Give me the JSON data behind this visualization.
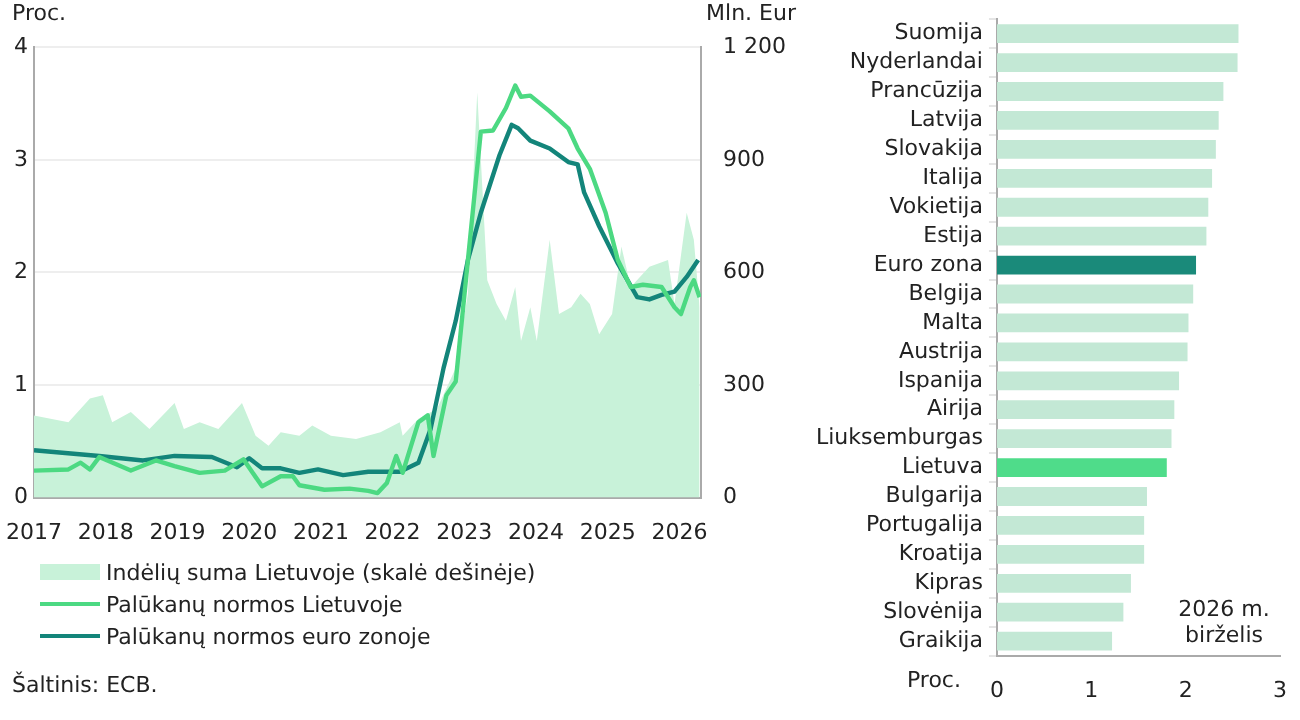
{
  "chart_data": [
    {
      "type": "line",
      "ylabel": "Proc.",
      "y2label": "Mln. Eur",
      "xlim": [
        2017,
        2026.3
      ],
      "xticks": [
        2017,
        2018,
        2019,
        2020,
        2021,
        2022,
        2023,
        2024,
        2025,
        2026
      ],
      "ylim": [
        0,
        4
      ],
      "yticks": [
        0,
        1,
        2,
        3,
        4
      ],
      "y2lim": [
        0,
        1200
      ],
      "y2ticks": [
        0,
        300,
        600,
        900,
        {
          "value": 1200,
          "label": "1 200"
        }
      ],
      "grid": "y",
      "legend": "bottom",
      "annotations": [
        "Šaltinis: ECB."
      ],
      "series": [
        {
          "name": "Indėlių suma Lietuvoje (skalė dešinėje)",
          "type": "area",
          "axis": "y2",
          "color": "#c8f2d9",
          "x": [
            2017,
            2017.48,
            2017.78,
            2017.96,
            2018.09,
            2018.35,
            2018.61,
            2018.96,
            2019.09,
            2019.31,
            2019.57,
            2019.9,
            2020.09,
            2020.27,
            2020.44,
            2020.7,
            2020.88,
            2021.14,
            2021.49,
            2021.83,
            2022.1,
            2022.14,
            2022.36,
            2022.62,
            2022.88,
            2023.05,
            2023.18,
            2023.32,
            2023.45,
            2023.58,
            2023.71,
            2023.79,
            2023.92,
            2024.01,
            2024.19,
            2024.32,
            2024.49,
            2024.62,
            2024.75,
            2024.88,
            2025.06,
            2025.19,
            2025.32,
            2025.58,
            2025.84,
            2025.93,
            2026.1,
            2026.2,
            2026.28
          ],
          "values": [
            219,
            201,
            264,
            273,
            201,
            228,
            183,
            252,
            183,
            201,
            183,
            252,
            165,
            138,
            174,
            165,
            192,
            165,
            156,
            174,
            201,
            165,
            210,
            237,
            345,
            543,
            1080,
            579,
            516,
            471,
            561,
            417,
            507,
            417,
            687,
            489,
            507,
            543,
            516,
            435,
            489,
            669,
            561,
            615,
            633,
            516,
            759,
            687,
            507
          ]
        },
        {
          "name": "Palūkanų normos Lietuvoje",
          "type": "line",
          "color": "#4cd982",
          "x": [
            2017,
            2017.48,
            2017.65,
            2017.78,
            2017.91,
            2018.35,
            2018.7,
            2018.96,
            2019.31,
            2019.66,
            2019.92,
            2020.18,
            2020.44,
            2020.61,
            2020.7,
            2021.05,
            2021.4,
            2021.66,
            2021.79,
            2021.92,
            2022.05,
            2022.14,
            2022.36,
            2022.49,
            2022.57,
            2022.75,
            2022.88,
            2023.05,
            2023.23,
            2023.4,
            2023.58,
            2023.71,
            2023.79,
            2023.92,
            2024.19,
            2024.45,
            2024.58,
            2024.75,
            2024.97,
            2025.14,
            2025.32,
            2025.49,
            2025.75,
            2025.93,
            2026.02,
            2026.15,
            2026.2,
            2026.28
          ],
          "values": [
            0.24,
            0.25,
            0.31,
            0.25,
            0.36,
            0.24,
            0.33,
            0.28,
            0.22,
            0.24,
            0.34,
            0.1,
            0.19,
            0.19,
            0.11,
            0.07,
            0.08,
            0.06,
            0.04,
            0.13,
            0.37,
            0.22,
            0.67,
            0.73,
            0.37,
            0.91,
            1.03,
            2.11,
            3.25,
            3.26,
            3.46,
            3.66,
            3.56,
            3.57,
            3.43,
            3.28,
            3.1,
            2.92,
            2.53,
            2.11,
            1.87,
            1.89,
            1.87,
            1.69,
            1.63,
            1.87,
            1.93,
            1.78
          ]
        },
        {
          "name": "Palūkanų normos euro zonoje",
          "type": "line",
          "color": "#13857a",
          "x": [
            2017,
            2017.91,
            2018.52,
            2018.96,
            2019.48,
            2019.83,
            2020.0,
            2020.18,
            2020.44,
            2020.7,
            2020.96,
            2021.31,
            2021.66,
            2022.1,
            2022.36,
            2022.53,
            2022.71,
            2022.88,
            2023.05,
            2023.23,
            2023.49,
            2023.66,
            2023.75,
            2023.92,
            2024.19,
            2024.45,
            2024.58,
            2024.67,
            2024.88,
            2025.14,
            2025.41,
            2025.58,
            2025.75,
            2025.93,
            2026.1,
            2026.26
          ],
          "values": [
            0.42,
            0.37,
            0.33,
            0.37,
            0.36,
            0.27,
            0.35,
            0.26,
            0.26,
            0.22,
            0.25,
            0.2,
            0.23,
            0.23,
            0.31,
            0.61,
            1.15,
            1.57,
            2.11,
            2.53,
            3.04,
            3.31,
            3.28,
            3.17,
            3.1,
            2.98,
            2.96,
            2.71,
            2.41,
            2.08,
            1.78,
            1.76,
            1.8,
            1.83,
            1.96,
            2.11
          ]
        }
      ]
    },
    {
      "type": "bar",
      "orientation": "horizontal",
      "xlabel": "Proc.",
      "xlim": [
        0,
        3
      ],
      "xticks": [
        0,
        1,
        2,
        3
      ],
      "annotations": [
        "2026 m.\nbirželis"
      ],
      "categories": [
        "Suomija",
        "Nyderlandai",
        "Prancūzija",
        "Latvija",
        "Slovakija",
        "Italija",
        "Vokietija",
        "Estija",
        "Euro zona",
        "Belgija",
        "Malta",
        "Austrija",
        "Ispanija",
        "Airija",
        "Liuksemburgas",
        "Lietuva",
        "Bulgarija",
        "Portugalija",
        "Kroatija",
        "Kipras",
        "Slovėnija",
        "Graikija"
      ],
      "values": [
        2.56,
        2.55,
        2.4,
        2.35,
        2.32,
        2.28,
        2.24,
        2.22,
        2.11,
        2.08,
        2.03,
        2.02,
        1.93,
        1.88,
        1.85,
        1.8,
        1.59,
        1.56,
        1.56,
        1.42,
        1.34,
        1.22
      ],
      "colors": [
        "#c3e8d5",
        "#c3e8d5",
        "#c3e8d5",
        "#c3e8d5",
        "#c3e8d5",
        "#c3e8d5",
        "#c3e8d5",
        "#c3e8d5",
        "#1a8a7a",
        "#c3e8d5",
        "#c3e8d5",
        "#c3e8d5",
        "#c3e8d5",
        "#c3e8d5",
        "#c3e8d5",
        "#4fdc8a",
        "#c3e8d5",
        "#c3e8d5",
        "#c3e8d5",
        "#c3e8d5",
        "#c3e8d5",
        "#c3e8d5"
      ]
    }
  ]
}
